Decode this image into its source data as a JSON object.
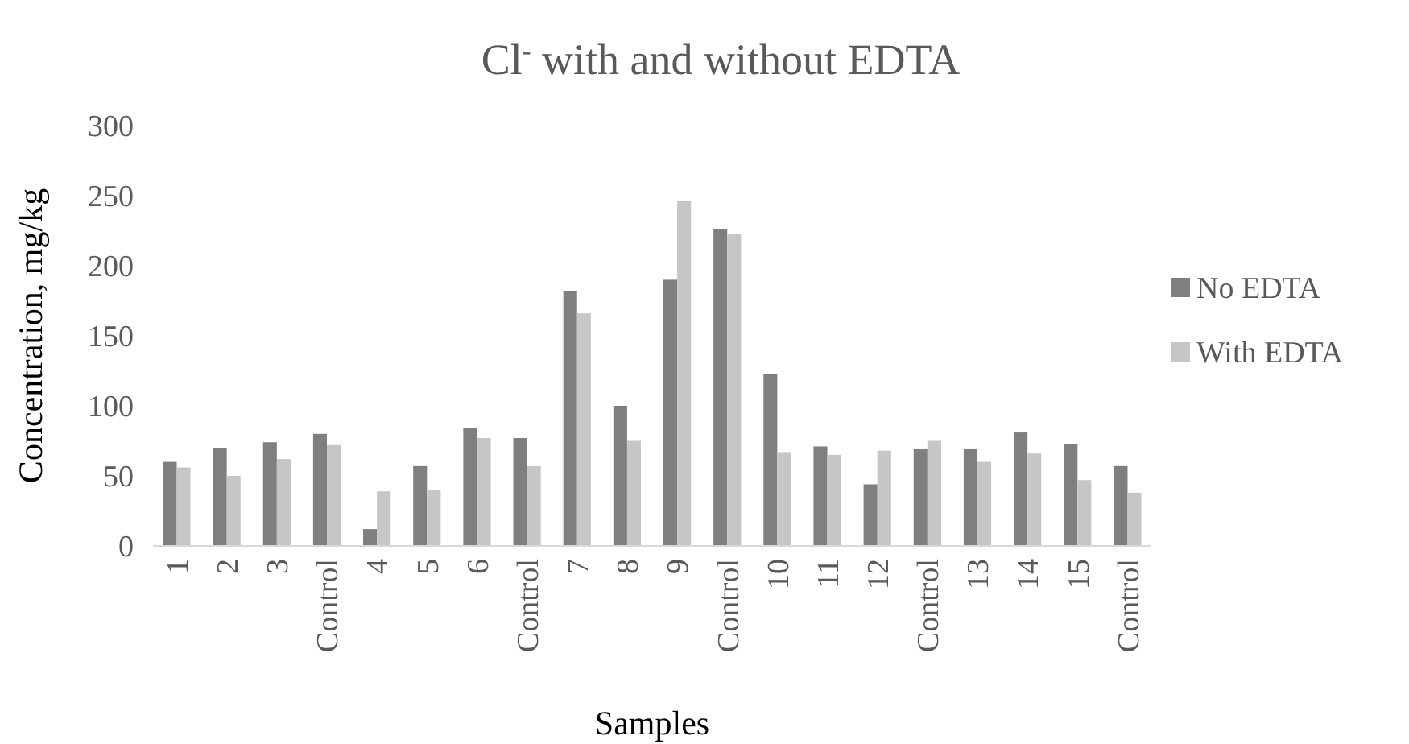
{
  "chart_data": {
    "type": "bar",
    "title": "Cl$^{-}$ with and without EDTA",
    "xlabel": "Samples",
    "ylabel": "Concentration, mg/kg",
    "categories": [
      "1",
      "2",
      "3",
      "Control",
      "4",
      "5",
      "6",
      "Control",
      "7",
      "8",
      "9",
      "Control",
      "10",
      "11",
      "12",
      "Control",
      "13",
      "14",
      "15",
      "Control"
    ],
    "series": [
      {
        "name": "No EDTA",
        "color": "#7f7f7f",
        "values": [
          60,
          70,
          74,
          80,
          12,
          57,
          84,
          77,
          182,
          100,
          190,
          226,
          123,
          71,
          44,
          69,
          69,
          81,
          73,
          57
        ]
      },
      {
        "name": "With EDTA",
        "color": "#c6c6c6",
        "values": [
          56,
          50,
          62,
          72,
          39,
          40,
          77,
          57,
          166,
          75,
          246,
          223,
          67,
          65,
          68,
          75,
          60,
          66,
          47,
          38
        ]
      }
    ],
    "ylim": [
      0,
      300
    ],
    "yticks": [
      0,
      50,
      100,
      150,
      200,
      250,
      300
    ],
    "grid": false,
    "legend": "right"
  }
}
